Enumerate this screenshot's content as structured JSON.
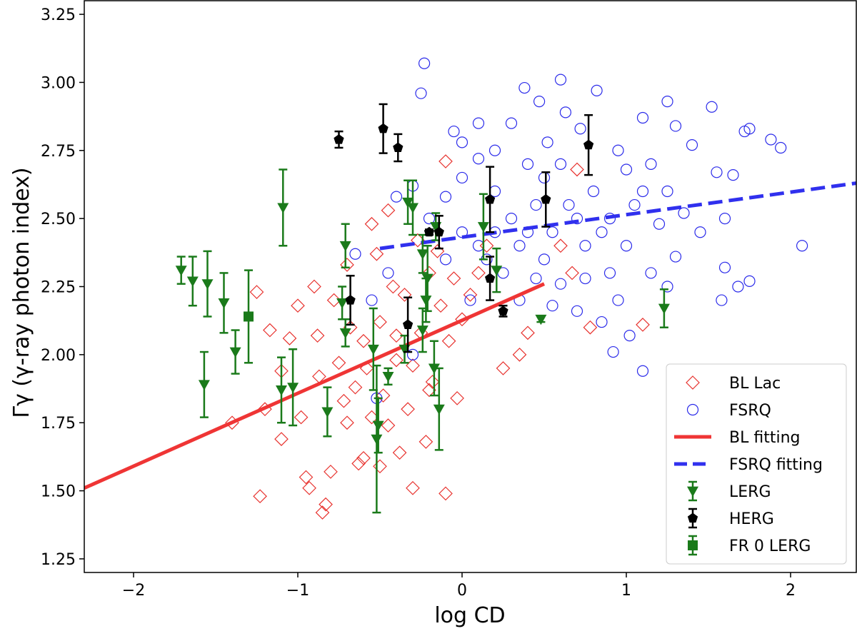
{
  "chart_data": {
    "type": "scatter",
    "x_label": "log CD",
    "y_label": "Γγ (γ-ray photon index)",
    "xlim": [
      -2.3,
      2.4
    ],
    "ylim": [
      1.2,
      3.3
    ],
    "xticks": [
      {
        "value": -2,
        "label": "−2"
      },
      {
        "value": -1,
        "label": "−1"
      },
      0,
      1,
      2
    ],
    "yticks": [
      {
        "value": 1.25,
        "label": "1.25"
      },
      {
        "value": 1.5,
        "label": "1.50"
      },
      1.75,
      {
        "value": 2,
        "label": "2.00"
      },
      2.25,
      {
        "value": 2.5,
        "label": "2.50"
      },
      2.75,
      {
        "value": 3,
        "label": "3.00"
      },
      3.25
    ],
    "legend": "lower right",
    "series": [
      {
        "name": "BL Lac",
        "kind": "scatter",
        "marker": "diamond",
        "color": "#e8332f",
        "x": [
          -1.23,
          -1.25,
          -1.17,
          -1.2,
          -1.4,
          -1.1,
          -1.1,
          -1.05,
          -1.0,
          -0.98,
          -0.95,
          -0.93,
          -0.9,
          -0.88,
          -0.87,
          -0.85,
          -0.83,
          -0.8,
          -0.78,
          -0.75,
          -0.72,
          -0.7,
          -0.68,
          -0.65,
          -0.63,
          -0.6,
          -0.58,
          -0.55,
          -0.55,
          -0.52,
          -0.5,
          -0.48,
          -0.45,
          -0.45,
          -0.42,
          -0.4,
          -0.38,
          -0.35,
          -0.33,
          -0.3,
          -0.3,
          -0.27,
          -0.25,
          -0.22,
          -0.2,
          -0.18,
          -0.15,
          -0.13,
          -0.1,
          -0.1,
          -0.08,
          -0.05,
          -0.03,
          0.0,
          0.05,
          0.1,
          0.15,
          0.25,
          0.35,
          0.4,
          0.6,
          0.67,
          0.7,
          0.78,
          1.1,
          -0.6,
          -0.7,
          -0.5,
          -0.4,
          -0.2
        ],
        "values": [
          1.48,
          2.23,
          2.09,
          1.8,
          1.75,
          1.94,
          1.69,
          2.06,
          2.18,
          1.77,
          1.55,
          1.51,
          2.25,
          2.07,
          1.92,
          1.42,
          1.45,
          1.57,
          2.2,
          1.97,
          1.83,
          2.33,
          2.1,
          1.88,
          1.6,
          2.05,
          1.95,
          1.77,
          2.48,
          2.37,
          2.12,
          1.85,
          2.53,
          1.74,
          2.25,
          1.98,
          1.64,
          2.22,
          1.8,
          1.51,
          1.96,
          2.42,
          2.08,
          1.68,
          2.3,
          1.9,
          2.38,
          2.18,
          2.71,
          1.49,
          2.05,
          2.28,
          1.84,
          2.13,
          2.22,
          2.3,
          2.4,
          1.95,
          2.0,
          2.08,
          2.4,
          2.3,
          2.68,
          2.1,
          2.11,
          1.62,
          1.75,
          1.59,
          2.07,
          1.87
        ]
      },
      {
        "name": "FSRQ",
        "kind": "scatter",
        "marker": "circle",
        "color": "#2b2bea",
        "x": [
          -0.23,
          -0.25,
          -0.05,
          0.0,
          0.1,
          0.2,
          0.3,
          0.38,
          0.47,
          0.52,
          0.6,
          0.63,
          0.72,
          0.82,
          0.95,
          1.1,
          1.25,
          1.3,
          1.4,
          1.52,
          1.72,
          1.75,
          1.88,
          1.94,
          1.55,
          1.65,
          1.6,
          1.58,
          1.6,
          1.68,
          1.75,
          2.07,
          1.3,
          1.2,
          1.1,
          1.0,
          0.9,
          0.92,
          1.02,
          1.1,
          0.85,
          0.7,
          0.6,
          0.5,
          0.4,
          0.3,
          0.2,
          0.1,
          0.0,
          -0.1,
          -0.2,
          -0.3,
          -0.4,
          -0.45,
          -0.55,
          -0.65,
          -0.52,
          -0.3,
          0.05,
          0.15,
          0.25,
          0.35,
          0.45,
          0.55,
          0.65,
          0.75,
          0.8,
          0.9,
          1.0,
          1.05,
          1.15,
          1.25,
          1.35,
          1.45,
          0.4,
          0.5,
          0.6,
          0.7,
          0.85,
          0.95,
          1.15,
          1.25,
          0.35,
          0.45,
          0.55,
          0.75,
          0.2,
          0.1,
          0.0,
          -0.1
        ],
        "values": [
          3.07,
          2.96,
          2.82,
          2.78,
          2.85,
          2.75,
          2.85,
          2.98,
          2.93,
          2.78,
          3.01,
          2.89,
          2.83,
          2.97,
          2.75,
          2.87,
          2.93,
          2.84,
          2.77,
          2.91,
          2.82,
          2.83,
          2.79,
          2.76,
          2.67,
          2.66,
          2.5,
          2.2,
          2.32,
          2.25,
          2.27,
          2.4,
          2.36,
          2.48,
          2.6,
          2.68,
          2.3,
          2.01,
          2.07,
          1.94,
          2.12,
          2.16,
          2.26,
          2.35,
          2.45,
          2.5,
          2.6,
          2.72,
          2.65,
          2.58,
          2.5,
          2.62,
          2.58,
          2.3,
          2.2,
          2.37,
          1.84,
          2.0,
          2.2,
          2.35,
          2.3,
          2.2,
          2.55,
          2.45,
          2.55,
          2.4,
          2.6,
          2.5,
          2.4,
          2.55,
          2.7,
          2.6,
          2.52,
          2.45,
          2.7,
          2.65,
          2.7,
          2.5,
          2.45,
          2.2,
          2.3,
          2.25,
          2.4,
          2.28,
          2.18,
          2.28,
          2.45,
          2.4,
          2.45,
          2.35
        ]
      },
      {
        "name": "BL fitting",
        "kind": "line",
        "color": "#ef3535",
        "linestyle": "solid",
        "x": [
          -2.3,
          0.5
        ],
        "values": [
          1.51,
          2.26
        ]
      },
      {
        "name": "FSRQ fitting",
        "kind": "line",
        "color": "#3030ee",
        "linestyle": "dashed",
        "x": [
          -0.5,
          2.4
        ],
        "values": [
          2.39,
          2.63
        ]
      },
      {
        "name": "LERG",
        "kind": "errorbar",
        "marker": "triangle_down",
        "color": "#1a7a1a",
        "x": [
          -1.71,
          -1.64,
          -1.55,
          -1.45,
          -1.38,
          -1.57,
          -1.09,
          -1.1,
          -1.03,
          -0.82,
          -0.71,
          -0.73,
          -0.71,
          -0.54,
          -0.52,
          -0.51,
          -0.45,
          -0.35,
          -0.33,
          -0.3,
          -0.24,
          -0.22,
          -0.21,
          -0.17,
          -0.16,
          -0.14,
          0.13,
          0.21,
          0.48,
          1.23,
          -0.24
        ],
        "values": [
          2.31,
          2.27,
          2.26,
          2.19,
          2.01,
          1.89,
          2.54,
          1.87,
          1.88,
          1.79,
          2.4,
          2.19,
          2.08,
          2.02,
          1.69,
          1.74,
          1.92,
          2.02,
          2.56,
          2.54,
          2.37,
          2.2,
          2.28,
          1.95,
          2.47,
          1.8,
          2.47,
          2.31,
          2.13,
          2.17,
          2.09
        ],
        "errors": [
          0.05,
          0.09,
          0.12,
          0.11,
          0.08,
          0.12,
          0.14,
          0.12,
          0.14,
          0.09,
          0.08,
          0.06,
          0.05,
          0.15,
          0.27,
          0.1,
          0.03,
          0.05,
          0.08,
          0.1,
          0.07,
          0.08,
          0.12,
          0.1,
          0.05,
          0.15,
          0.12,
          0.08,
          0.01,
          0.07,
          0.08
        ]
      },
      {
        "name": "HERG",
        "kind": "errorbar",
        "marker": "pentagon",
        "color": "#000000",
        "x": [
          -0.75,
          -0.48,
          -0.39,
          -0.2,
          -0.14,
          -0.68,
          -0.33,
          0.17,
          0.17,
          0.25,
          0.51,
          0.77
        ],
        "values": [
          2.79,
          2.83,
          2.76,
          2.45,
          2.45,
          2.2,
          2.11,
          2.57,
          2.28,
          2.16,
          2.57,
          2.77
        ],
        "errors": [
          0.03,
          0.09,
          0.05,
          0.01,
          0.06,
          0.09,
          0.1,
          0.12,
          0.08,
          0.02,
          0.1,
          0.11
        ]
      },
      {
        "name": "FR 0 LERG",
        "kind": "errorbar",
        "marker": "square",
        "color": "#1a7a1a",
        "x": [
          -1.3
        ],
        "values": [
          2.14
        ],
        "errors": [
          0.17
        ]
      }
    ]
  }
}
